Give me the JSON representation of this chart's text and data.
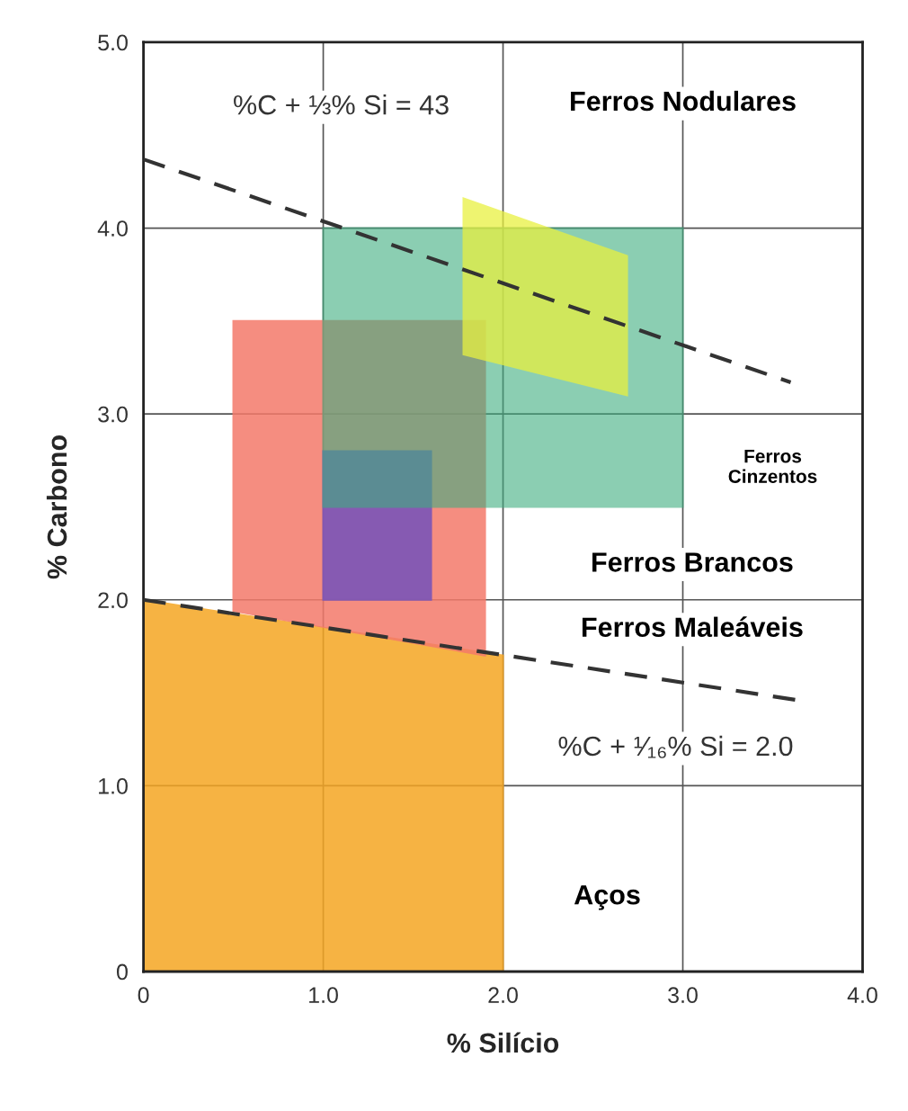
{
  "chart_data": {
    "type": "area",
    "xlabel": "% Silício",
    "ylabel": "% Carbono",
    "xlim": [
      0,
      4
    ],
    "ylim": [
      0,
      5
    ],
    "xticks": [
      0,
      {
        "value": 1,
        "label": "1.0"
      },
      {
        "value": 2,
        "label": "2.0"
      },
      {
        "value": 3,
        "label": "3.0"
      },
      {
        "value": 4,
        "label": "4.0"
      }
    ],
    "yticks": [
      0,
      {
        "value": 1,
        "label": "1.0"
      },
      {
        "value": 2,
        "label": "2.0"
      },
      {
        "value": 3,
        "label": "3.0"
      },
      {
        "value": 4,
        "label": "4.0"
      },
      {
        "value": 5,
        "label": "5.0"
      }
    ],
    "grid": true,
    "legend": false,
    "series": [
      {
        "color": "#f5a623",
        "x": [
          0,
          0,
          2.0,
          2.0
        ],
        "values": [
          0,
          2.0,
          1.7,
          0
        ]
      },
      {
        "color": "#f47a6a",
        "x": [
          0.5,
          0.5,
          1.9,
          1.9
        ],
        "values": [
          1.94,
          3.5,
          3.5,
          1.7
        ]
      },
      {
        "color": "#7a55b8",
        "x": [
          1.0,
          1.0,
          1.6,
          1.6
        ],
        "values": [
          2.0,
          2.8,
          2.8,
          2.0
        ]
      },
      {
        "color": "#3fae80",
        "x": [
          1.0,
          1.0,
          3.0,
          3.0
        ],
        "values": [
          2.5,
          4.0,
          4.0,
          2.5
        ]
      },
      {
        "color": "#e8f040",
        "x": [
          1.78,
          2.69,
          2.69,
          1.78
        ],
        "values": [
          4.16,
          3.85,
          3.1,
          3.32
        ]
      },
      {
        "type": "line",
        "color": "#333333",
        "line_style": "dashed",
        "x": [
          0,
          3.6
        ],
        "values": [
          4.37,
          3.17
        ]
      },
      {
        "type": "line",
        "color": "#333333",
        "line_style": "dashed",
        "x": [
          0,
          3.64
        ],
        "values": [
          2.0,
          1.46
        ]
      }
    ],
    "annotations": [
      "Ferros Nodulares",
      "Ferros\nCinzentos",
      "Ferros Brancos",
      "Ferros Maleáveis",
      "Aços",
      "%C + ⅓% Si = 43",
      "%C + ¹⁄₁₆% Si = 2.0"
    ]
  }
}
